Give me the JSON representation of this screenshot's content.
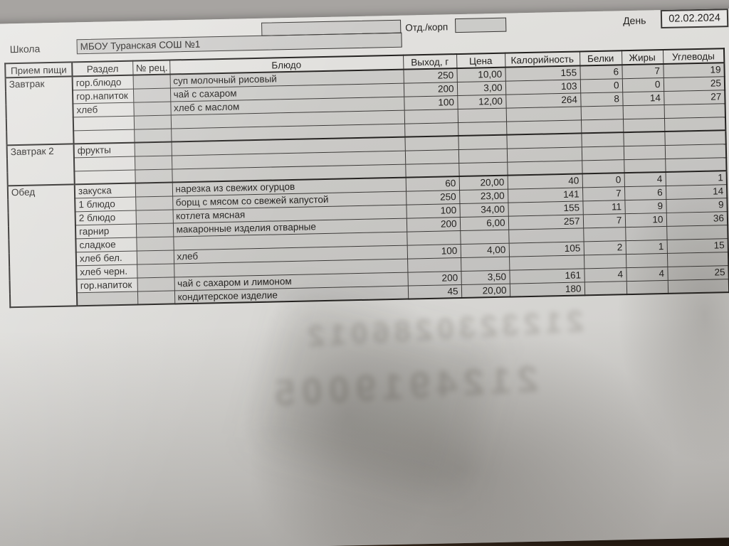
{
  "form": {
    "school_label": "Школа",
    "school_value": "МБОУ Туранская СОШ №1",
    "dept_label": "Отд./корп",
    "dept_value": "",
    "day_label": "День",
    "day_value": "02.02.2024"
  },
  "table": {
    "headers": [
      "Прием пищи",
      "Раздел",
      "№ рец.",
      "Блюдо",
      "Выход, г",
      "Цена",
      "Калорийность",
      "Белки",
      "Жиры",
      "Углеводы"
    ],
    "sections": [
      {
        "meal": "Завтрак",
        "rows": [
          {
            "razdel": "гор.блюдо",
            "rec": "",
            "dish": "суп молочный рисовый",
            "out": "250",
            "price": "10,00",
            "kcal": "155",
            "prot": "6",
            "fat": "7",
            "carb": "19"
          },
          {
            "razdel": "гор.напиток",
            "rec": "",
            "dish": "чай с сахаром",
            "out": "200",
            "price": "3,00",
            "kcal": "103",
            "prot": "0",
            "fat": "0",
            "carb": "25"
          },
          {
            "razdel": "хлеб",
            "rec": "",
            "dish": "хлеб с маслом",
            "out": "100",
            "price": "12,00",
            "kcal": "264",
            "prot": "8",
            "fat": "14",
            "carb": "27"
          },
          {
            "razdel": "",
            "rec": "",
            "dish": "",
            "out": "",
            "price": "",
            "kcal": "",
            "prot": "",
            "fat": "",
            "carb": ""
          },
          {
            "razdel": "",
            "rec": "",
            "dish": "",
            "out": "",
            "price": "",
            "kcal": "",
            "prot": "",
            "fat": "",
            "carb": ""
          }
        ]
      },
      {
        "meal": "Завтрак 2",
        "rows": [
          {
            "razdel": "фрукты",
            "rec": "",
            "dish": "",
            "out": "",
            "price": "",
            "kcal": "",
            "prot": "",
            "fat": "",
            "carb": ""
          },
          {
            "razdel": "",
            "rec": "",
            "dish": "",
            "out": "",
            "price": "",
            "kcal": "",
            "prot": "",
            "fat": "",
            "carb": ""
          },
          {
            "razdel": "",
            "rec": "",
            "dish": "",
            "out": "",
            "price": "",
            "kcal": "",
            "prot": "",
            "fat": "",
            "carb": ""
          }
        ]
      },
      {
        "meal": "Обед",
        "rows": [
          {
            "razdel": "закуска",
            "rec": "",
            "dish": "нарезка из свежих огурцов",
            "out": "60",
            "price": "20,00",
            "kcal": "40",
            "prot": "0",
            "fat": "4",
            "carb": "1"
          },
          {
            "razdel": "1 блюдо",
            "rec": "",
            "dish": "борщ с мясом со свежей капустой",
            "out": "250",
            "price": "23,00",
            "kcal": "141",
            "prot": "7",
            "fat": "6",
            "carb": "14"
          },
          {
            "razdel": "2 блюдо",
            "rec": "",
            "dish": "котлета мясная",
            "out": "100",
            "price": "34,00",
            "kcal": "155",
            "prot": "11",
            "fat": "9",
            "carb": "9"
          },
          {
            "razdel": "гарнир",
            "rec": "",
            "dish": "макаронные изделия отварные",
            "out": "200",
            "price": "6,00",
            "kcal": "257",
            "prot": "7",
            "fat": "10",
            "carb": "36"
          },
          {
            "razdel": "сладкое",
            "rec": "",
            "dish": "",
            "out": "",
            "price": "",
            "kcal": "",
            "prot": "",
            "fat": "",
            "carb": ""
          },
          {
            "razdel": "хлеб бел.",
            "rec": "",
            "dish": "хлеб",
            "out": "100",
            "price": "4,00",
            "kcal": "105",
            "prot": "2",
            "fat": "1",
            "carb": "15"
          },
          {
            "razdel": "хлеб черн.",
            "rec": "",
            "dish": "",
            "out": "",
            "price": "",
            "kcal": "",
            "prot": "",
            "fat": "",
            "carb": ""
          },
          {
            "razdel": "гор.напиток",
            "rec": "",
            "dish": "чай с сахаром и лимоном",
            "out": "200",
            "price": "3,50",
            "kcal": "161",
            "prot": "4",
            "fat": "4",
            "carb": "25"
          },
          {
            "razdel": "",
            "razdel_fill": true,
            "rec": "",
            "dish": "кондитерское изделие",
            "out": "45",
            "price": "20,00",
            "kcal": "180",
            "prot": "",
            "fat": "",
            "carb": ""
          }
        ]
      }
    ]
  },
  "ghost": {
    "line1": "2123230286012",
    "line2": "2124919005"
  },
  "colors": {
    "table_surface": "#a7a4a1",
    "paper": "#dddcd9",
    "cell_fill": "#cac9c6",
    "border": "#3a3836",
    "table_edge_dark": "#20160e"
  }
}
